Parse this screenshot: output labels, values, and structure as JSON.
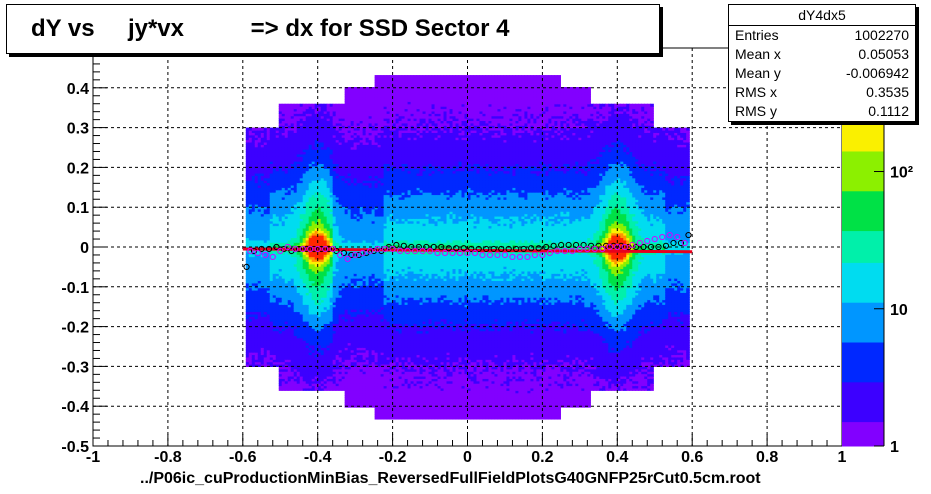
{
  "title": "dY vs     jy*vx          => dx for SSD Sector 4",
  "footer": "../P06ic_cuProductionMinBias_ReversedFullFieldPlotsG40GNFP25rCut0.5cm.root",
  "stats": {
    "name": "dY4dx5",
    "rows": [
      {
        "label": "Entries",
        "value": "1002270"
      },
      {
        "label": "Mean x",
        "value": "0.05053"
      },
      {
        "label": "Mean y",
        "value": "-0.006942"
      },
      {
        "label": "RMS x",
        "value": "0.3535"
      },
      {
        "label": "RMS y",
        "value": "0.1112"
      }
    ]
  },
  "chart_data": {
    "type": "heatmap",
    "xlim": [
      -1,
      1
    ],
    "ylim": [
      -0.5,
      0.5
    ],
    "grid": true,
    "x_ticks": [
      "-1",
      "-0.8",
      "-0.6",
      "-0.4",
      "-0.2",
      "0",
      "0.2",
      "0.4",
      "0.6",
      "0.8",
      "1"
    ],
    "y_ticks": [
      "-0.5",
      "-0.4",
      "-0.3",
      "-0.2",
      "-0.1",
      "0",
      "0.1",
      "0.2",
      "0.3",
      "0.4"
    ],
    "colorbar": {
      "scale": "log",
      "labels": [
        "1",
        "10",
        "10²"
      ],
      "label_values": [
        1,
        10,
        100
      ]
    },
    "occupied_x_range": [
      -0.6,
      0.6
    ],
    "hotspots": [
      {
        "x": -0.4,
        "y": 0
      },
      {
        "x": 0.4,
        "y": 0
      }
    ],
    "fit_line": {
      "x": [
        -0.6,
        0.6
      ],
      "y": [
        -0.005,
        -0.012
      ]
    },
    "profile_black": {
      "x": [
        -0.59,
        -0.57,
        -0.55,
        -0.53,
        -0.51,
        -0.49,
        -0.47,
        -0.45,
        -0.43,
        -0.41,
        -0.39,
        -0.37,
        -0.35,
        -0.33,
        -0.31,
        -0.29,
        -0.27,
        -0.25,
        -0.23,
        -0.21,
        -0.19,
        -0.17,
        -0.15,
        -0.13,
        -0.11,
        -0.09,
        -0.07,
        -0.05,
        -0.03,
        -0.01,
        0.01,
        0.03,
        0.05,
        0.07,
        0.09,
        0.11,
        0.13,
        0.15,
        0.17,
        0.19,
        0.21,
        0.23,
        0.25,
        0.27,
        0.29,
        0.31,
        0.33,
        0.35,
        0.37,
        0.39,
        0.41,
        0.43,
        0.45,
        0.47,
        0.49,
        0.51,
        0.53,
        0.55,
        0.57,
        0.59
      ],
      "y": [
        -0.05,
        -0.01,
        -0.005,
        -0.005,
        0.0,
        -0.005,
        -0.01,
        -0.005,
        -0.005,
        -0.005,
        -0.005,
        -0.005,
        -0.01,
        -0.015,
        -0.02,
        -0.02,
        -0.015,
        -0.01,
        -0.01,
        0.0,
        0.005,
        0.003,
        0.0,
        0.0,
        0.0,
        0.0,
        0.0,
        -0.003,
        -0.003,
        -0.003,
        -0.005,
        -0.005,
        -0.005,
        -0.005,
        -0.005,
        -0.005,
        -0.005,
        -0.005,
        -0.003,
        -0.003,
        0.0,
        0.003,
        0.005,
        0.005,
        0.005,
        0.005,
        0.003,
        0.003,
        0.003,
        0.003,
        0.003,
        0.0,
        0.0,
        0.0,
        0.0,
        0.0,
        0.003,
        0.01,
        0.01,
        0.03
      ]
    },
    "profile_magenta": {
      "x": [
        -0.58,
        -0.56,
        -0.54,
        -0.52,
        -0.5,
        -0.48,
        -0.46,
        -0.44,
        -0.42,
        -0.4,
        -0.38,
        -0.36,
        -0.34,
        -0.32,
        -0.3,
        -0.28,
        -0.26,
        -0.24,
        -0.22,
        -0.2,
        -0.18,
        -0.16,
        -0.14,
        -0.12,
        -0.1,
        -0.08,
        -0.06,
        -0.04,
        -0.02,
        0.0,
        0.02,
        0.04,
        0.06,
        0.08,
        0.1,
        0.12,
        0.14,
        0.16,
        0.18,
        0.2,
        0.22,
        0.24,
        0.26,
        0.28,
        0.3,
        0.32,
        0.34,
        0.36,
        0.38,
        0.4,
        0.42,
        0.44,
        0.46,
        0.48,
        0.5,
        0.52,
        0.54,
        0.56,
        0.58
      ],
      "y": [
        -0.01,
        -0.015,
        -0.02,
        -0.025,
        -0.01,
        0.0,
        -0.005,
        -0.005,
        -0.005,
        -0.005,
        -0.005,
        -0.005,
        -0.02,
        -0.03,
        -0.02,
        -0.015,
        -0.01,
        -0.005,
        -0.005,
        -0.005,
        -0.01,
        -0.01,
        -0.01,
        -0.01,
        -0.01,
        -0.015,
        -0.015,
        -0.015,
        -0.015,
        -0.015,
        -0.015,
        -0.02,
        -0.02,
        -0.02,
        -0.02,
        -0.025,
        -0.025,
        -0.025,
        -0.02,
        -0.02,
        -0.015,
        -0.01,
        -0.01,
        -0.01,
        -0.005,
        -0.005,
        -0.005,
        -0.005,
        0.0,
        0.0,
        0.0,
        0.005,
        0.01,
        0.015,
        0.02,
        0.025,
        0.03,
        0.025,
        0.01
      ]
    }
  }
}
